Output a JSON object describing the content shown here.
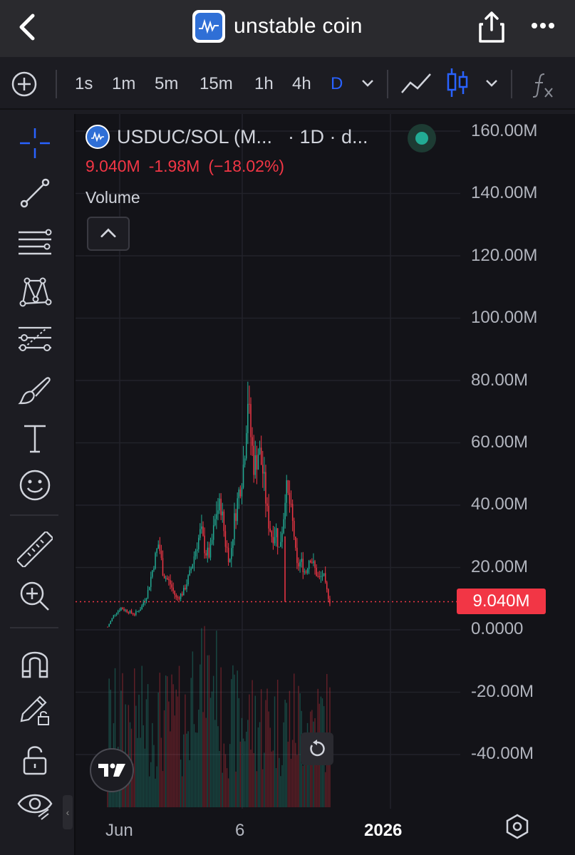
{
  "header": {
    "title": "unstable coin",
    "icons": [
      "back-chevron-icon",
      "app-logo",
      "share-icon",
      "more-dots-icon"
    ]
  },
  "toolbar": {
    "intervals": [
      "1s",
      "1m",
      "5m",
      "15m",
      "1h",
      "4h",
      "D"
    ],
    "active_interval": "D",
    "icons": [
      "add-circle-icon",
      "chevron-down-icon",
      "line-chart-icon",
      "candles-icon",
      "chevron-down-icon",
      "formula-icon"
    ]
  },
  "left_tools": [
    "crosshair-icon",
    "trendline-icon",
    "horizontal-lines-icon",
    "pattern-icon",
    "fib-icon",
    "brush-icon",
    "text-icon",
    "emoji-icon",
    "ruler-icon",
    "zoom-in-icon",
    "magnet-icon",
    "lock-pencil-icon",
    "unlock-icon",
    "eye-icon"
  ],
  "legend": {
    "symbol": "USDUC/SOL (M...",
    "timeframe": "· 1D · d...",
    "last_price": "9.040M",
    "change": "-1.98M",
    "change_pct": "(−18.02%)",
    "volume_label": "Volume"
  },
  "colors": {
    "up": "#22ab94",
    "down": "#f23645",
    "accent": "#2962ff",
    "background": "#131318"
  },
  "chart_data": {
    "type": "candlestick",
    "y_axis_ticks": [
      "160.00M",
      "140.00M",
      "120.00M",
      "100.00M",
      "80.00M",
      "60.00M",
      "40.00M",
      "20.00M",
      "0.0000",
      "-20.00M",
      "-40.00M"
    ],
    "ylim": [
      -57000000,
      160000000
    ],
    "x_axis_ticks": [
      "Jun",
      "6",
      "2026"
    ],
    "last_price_label": "9.040M",
    "last_price_value": 9040000,
    "close_path": [
      [
        0,
        1
      ],
      [
        3,
        5
      ],
      [
        6,
        7
      ],
      [
        9,
        6
      ],
      [
        12,
        5
      ],
      [
        15,
        7
      ],
      [
        18,
        12
      ],
      [
        21,
        22
      ],
      [
        23,
        28
      ],
      [
        25,
        18
      ],
      [
        28,
        15
      ],
      [
        31,
        10
      ],
      [
        34,
        12
      ],
      [
        37,
        18
      ],
      [
        40,
        27
      ],
      [
        42,
        32
      ],
      [
        44,
        25
      ],
      [
        46,
        24
      ],
      [
        49,
        38
      ],
      [
        51,
        40
      ],
      [
        53,
        28
      ],
      [
        55,
        22
      ],
      [
        57,
        35
      ],
      [
        59,
        44
      ],
      [
        61,
        52
      ],
      [
        62,
        62
      ],
      [
        63,
        76
      ],
      [
        64,
        65
      ],
      [
        66,
        52
      ],
      [
        68,
        58
      ],
      [
        70,
        50
      ],
      [
        72,
        36
      ],
      [
        74,
        30
      ],
      [
        76,
        32
      ],
      [
        77,
        25
      ],
      [
        79,
        35
      ],
      [
        80,
        46
      ],
      [
        82,
        40
      ],
      [
        84,
        30
      ],
      [
        85,
        20
      ],
      [
        87,
        22
      ],
      [
        89,
        18
      ],
      [
        91,
        24
      ],
      [
        93,
        20
      ],
      [
        95,
        16
      ],
      [
        97,
        18
      ],
      [
        98,
        14
      ],
      [
        100,
        9.04
      ]
    ],
    "volume_note": "volume histogram bars overlaid at bottom, relative heights"
  },
  "buttons": {
    "collapse_label": "^",
    "reset_icon": "reset-icon",
    "settings_icon": "settings-hexagon-icon",
    "handle": "‹"
  }
}
